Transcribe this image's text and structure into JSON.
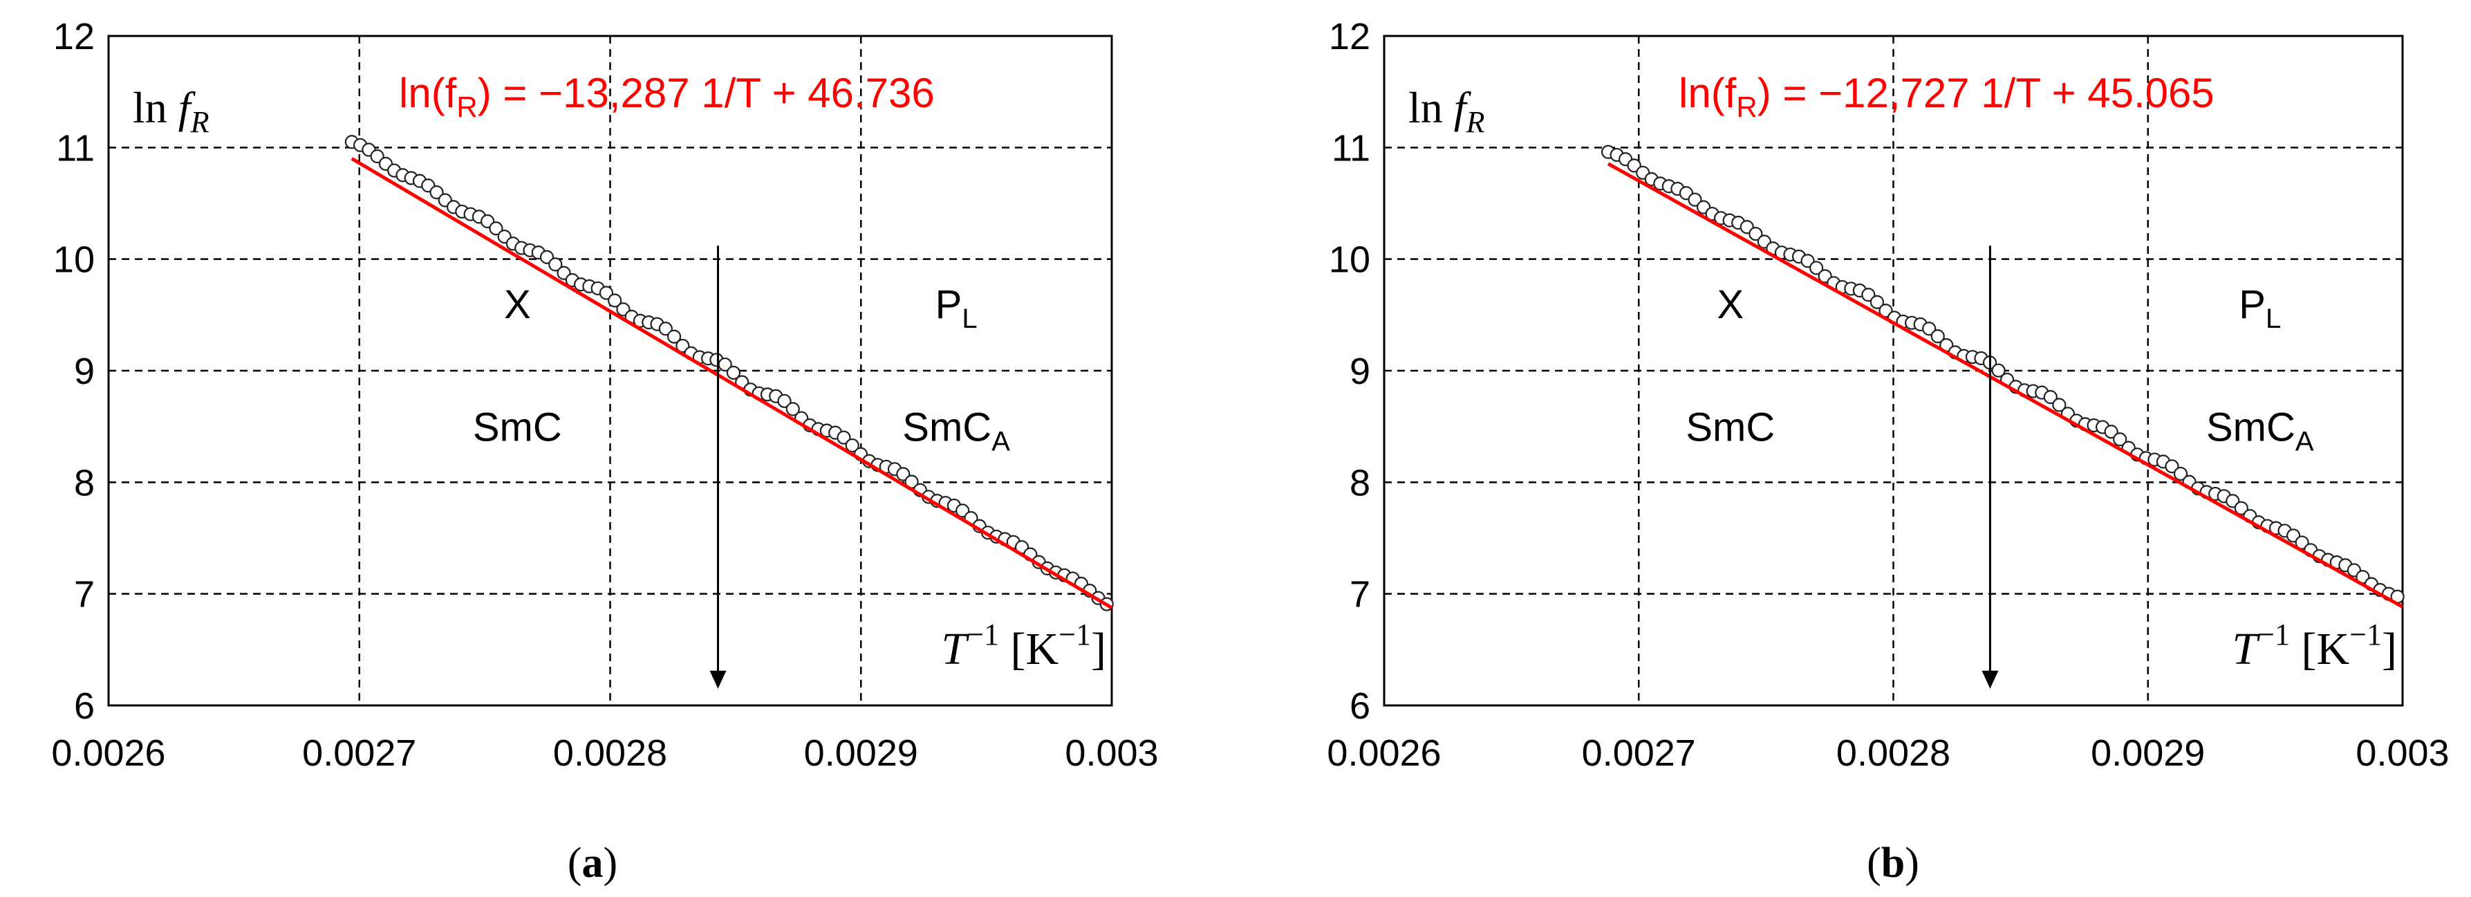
{
  "colors": {
    "fit_line": "#ff0000",
    "equation": "#ff0000",
    "points_stroke": "#222222",
    "points_fill": "#ffffff",
    "grid": "#000000",
    "text": "#000000"
  },
  "chart_data": [
    {
      "type": "scatter",
      "panel_label": "a",
      "ylabel": "ln f",
      "ylabel_sub": "R",
      "xlabel": "T",
      "xlabel_sup": "−1",
      "xlabel_unit": "[K",
      "xlabel_unit_sup": "−1",
      "xlabel_unit_close": "]",
      "equation": {
        "prefix": "ln(f",
        "sub": "R",
        "suffix": ") = −13,287 1/T + 46.736"
      },
      "xlim": [
        0.0026,
        0.003
      ],
      "ylim": [
        6,
        12
      ],
      "x_ticks": [
        0.0026,
        0.0027,
        0.0028,
        0.0029,
        0.003
      ],
      "x_tick_labels": [
        "0.0026",
        "0.0027",
        "0.0028",
        "0.0029",
        "0.003"
      ],
      "y_ticks": [
        6,
        7,
        8,
        9,
        10,
        11,
        12
      ],
      "y_tick_labels": [
        "6",
        "7",
        "8",
        "9",
        "10",
        "11",
        "12"
      ],
      "fit": {
        "slope": -13287,
        "intercept": 46.736,
        "x_range": [
          0.002697,
          0.003
        ]
      },
      "points": {
        "x_start": 0.002697,
        "x_end": 0.002998,
        "count": 90,
        "y_start": 11.05,
        "y_end": 6.93
      },
      "transition_x": 0.002843,
      "arrow": {
        "y_from": 10.12,
        "y_to": 6.15
      },
      "annotations": [
        {
          "text": "X",
          "sub": "",
          "x": 0.002763,
          "y": 9.47
        },
        {
          "text": "SmC",
          "sub": "",
          "x": 0.002763,
          "y": 8.37
        },
        {
          "text": "P",
          "sub": "L",
          "x": 0.002938,
          "y": 9.47
        },
        {
          "text": "SmC",
          "sub": "A",
          "x": 0.002938,
          "y": 8.37
        }
      ]
    },
    {
      "type": "scatter",
      "panel_label": "b",
      "ylabel": "ln f",
      "ylabel_sub": "R",
      "xlabel": "T",
      "xlabel_sup": "−1",
      "xlabel_unit": "[K",
      "xlabel_unit_sup": "−1",
      "xlabel_unit_close": "]",
      "equation": {
        "prefix": "ln(f",
        "sub": "R",
        "suffix": ") = −12,727 1/T + 45.065"
      },
      "xlim": [
        0.0026,
        0.003
      ],
      "ylim": [
        6,
        12
      ],
      "x_ticks": [
        0.0026,
        0.0027,
        0.0028,
        0.0029,
        0.003
      ],
      "x_tick_labels": [
        "0.0026",
        "0.0027",
        "0.0028",
        "0.0029",
        "0.003"
      ],
      "y_ticks": [
        6,
        7,
        8,
        9,
        10,
        11,
        12
      ],
      "y_tick_labels": [
        "6",
        "7",
        "8",
        "9",
        "10",
        "11",
        "12"
      ],
      "fit": {
        "slope": -12727,
        "intercept": 45.065,
        "x_range": [
          0.002688,
          0.003
        ]
      },
      "points": {
        "x_start": 0.002688,
        "x_end": 0.002998,
        "count": 92,
        "y_start": 10.96,
        "y_end": 6.97
      },
      "transition_x": 0.002838,
      "arrow": {
        "y_from": 10.12,
        "y_to": 6.15
      },
      "annotations": [
        {
          "text": "X",
          "sub": "",
          "x": 0.002736,
          "y": 9.47
        },
        {
          "text": "SmC",
          "sub": "",
          "x": 0.002736,
          "y": 8.37
        },
        {
          "text": "P",
          "sub": "L",
          "x": 0.002944,
          "y": 9.47
        },
        {
          "text": "SmC",
          "sub": "A",
          "x": 0.002944,
          "y": 8.37
        }
      ]
    }
  ]
}
